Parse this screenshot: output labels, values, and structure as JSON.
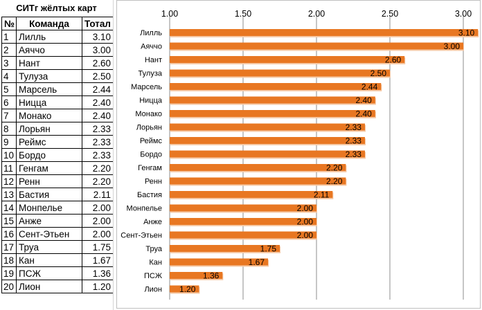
{
  "table": {
    "title": "СИТг жёлтых карт",
    "headers": {
      "num": "№",
      "team": "Команда",
      "total": "Тотал"
    },
    "rows": [
      {
        "num": "1",
        "team": "Лилль",
        "total": "3.10"
      },
      {
        "num": "2",
        "team": "Аяччо",
        "total": "3.00"
      },
      {
        "num": "3",
        "team": "Нант",
        "total": "2.60"
      },
      {
        "num": "4",
        "team": "Тулуза",
        "total": "2.50"
      },
      {
        "num": "5",
        "team": "Марсель",
        "total": "2.44"
      },
      {
        "num": "6",
        "team": "Ницца",
        "total": "2.40"
      },
      {
        "num": "7",
        "team": "Монако",
        "total": "2.40"
      },
      {
        "num": "8",
        "team": "Лорьян",
        "total": "2.33"
      },
      {
        "num": "9",
        "team": "Реймс",
        "total": "2.33"
      },
      {
        "num": "10",
        "team": "Бордо",
        "total": "2.33"
      },
      {
        "num": "11",
        "team": "Генгам",
        "total": "2.20"
      },
      {
        "num": "12",
        "team": "Ренн",
        "total": "2.20"
      },
      {
        "num": "13",
        "team": "Бастия",
        "total": "2.11"
      },
      {
        "num": "14",
        "team": "Монпелье",
        "total": "2.00"
      },
      {
        "num": "15",
        "team": "Анже",
        "total": "2.00"
      },
      {
        "num": "16",
        "team": "Сент-Этьен",
        "total": "2.00"
      },
      {
        "num": "17",
        "team": "Труа",
        "total": "1.75"
      },
      {
        "num": "18",
        "team": "Кан",
        "total": "1.67"
      },
      {
        "num": "19",
        "team": "ПСЖ",
        "total": "1.36"
      },
      {
        "num": "20",
        "team": "Лион",
        "total": "1.20"
      }
    ]
  },
  "chart_data": {
    "type": "bar",
    "orientation": "horizontal",
    "categories": [
      "Лилль",
      "Аяччо",
      "Нант",
      "Тулуза",
      "Марсель",
      "Ницца",
      "Монако",
      "Лорьян",
      "Реймс",
      "Бордо",
      "Генгам",
      "Ренн",
      "Бастия",
      "Монпелье",
      "Анже",
      "Сент-Этьен",
      "Труа",
      "Кан",
      "ПСЖ",
      "Лион"
    ],
    "values": [
      3.1,
      3.0,
      2.6,
      2.5,
      2.44,
      2.4,
      2.4,
      2.33,
      2.33,
      2.33,
      2.2,
      2.2,
      2.11,
      2.0,
      2.0,
      2.0,
      1.75,
      1.67,
      1.36,
      1.2
    ],
    "value_labels": [
      "3.10",
      "3.00",
      "2.60",
      "2.50",
      "2.44",
      "2.40",
      "2.40",
      "2.33",
      "2.33",
      "2.33",
      "2.20",
      "2.20",
      "2.11",
      "2.00",
      "2.00",
      "2.00",
      "1.75",
      "1.67",
      "1.36",
      "1.20"
    ],
    "xlim": [
      1.0,
      3.0
    ],
    "x_ticks": [
      1.0,
      1.5,
      2.0,
      2.5,
      3.0
    ],
    "x_tick_labels": [
      "1.00",
      "1.50",
      "2.00",
      "2.50",
      "3.00"
    ],
    "axis_position": "top",
    "grid": true,
    "legend": "none",
    "title": "",
    "xlabel": "",
    "ylabel": "",
    "bar_color": "#E87722",
    "bar_shadow_color": "#F6C9A6",
    "grid_color": "#8c8c8c"
  }
}
